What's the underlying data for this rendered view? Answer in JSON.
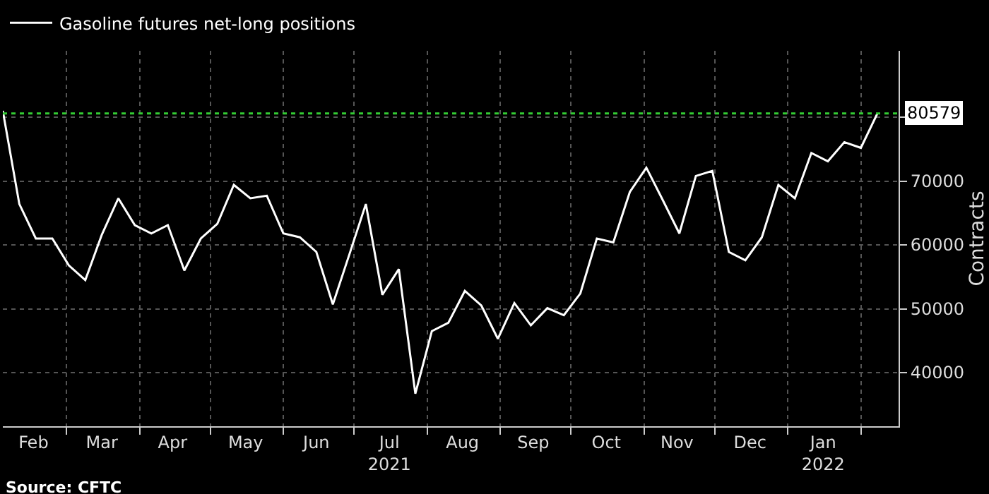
{
  "chart_data": {
    "type": "line",
    "x": [
      "2021-02-02",
      "2021-02-09",
      "2021-02-16",
      "2021-02-23",
      "2021-03-02",
      "2021-03-09",
      "2021-03-16",
      "2021-03-23",
      "2021-03-30",
      "2021-04-06",
      "2021-04-13",
      "2021-04-20",
      "2021-04-27",
      "2021-05-04",
      "2021-05-11",
      "2021-05-18",
      "2021-05-25",
      "2021-06-01",
      "2021-06-08",
      "2021-06-15",
      "2021-06-22",
      "2021-06-29",
      "2021-07-06",
      "2021-07-13",
      "2021-07-20",
      "2021-07-27",
      "2021-08-03",
      "2021-08-10",
      "2021-08-17",
      "2021-08-24",
      "2021-08-31",
      "2021-09-07",
      "2021-09-14",
      "2021-09-21",
      "2021-09-28",
      "2021-10-05",
      "2021-10-12",
      "2021-10-19",
      "2021-10-26",
      "2021-11-02",
      "2021-11-09",
      "2021-11-16",
      "2021-11-23",
      "2021-11-30",
      "2021-12-07",
      "2021-12-14",
      "2021-12-21",
      "2021-12-28",
      "2022-01-04",
      "2022-01-11",
      "2022-01-18",
      "2022-01-25",
      "2022-02-01",
      "2022-02-08"
    ],
    "series": [
      {
        "name": "Gasoline futures net-long positions",
        "color": "#ffffff",
        "values": [
          81000,
          66400,
          61000,
          61000,
          56800,
          54500,
          61600,
          67300,
          63100,
          61800,
          63100,
          56000,
          61000,
          63300,
          69400,
          67300,
          67700,
          61800,
          61200,
          58900,
          50700,
          58500,
          66400,
          52200,
          56200,
          36700,
          46500,
          47800,
          52800,
          50500,
          45300,
          50900,
          47400,
          50100,
          49000,
          52400,
          61000,
          60400,
          68300,
          72100,
          67000,
          61800,
          70800,
          71600,
          58900,
          57600,
          61200,
          69400,
          67300,
          74400,
          73100,
          76100,
          75200,
          80579
        ]
      }
    ],
    "ylabel": "Contracts",
    "ylim": [
      31600,
      90400
    ],
    "yticks": [
      40000,
      50000,
      60000,
      70000,
      {
        "value": 80000,
        "label": null
      }
    ],
    "xlim": [
      "2021-02-02",
      "2022-02-17"
    ],
    "xticks": [
      {
        "value": "2021-02-15",
        "label": "Feb"
      },
      {
        "value": "2021-03-01",
        "label": null
      },
      {
        "value": "2021-03-16",
        "label": "Mar"
      },
      {
        "value": "2021-04-01",
        "label": null
      },
      {
        "value": "2021-04-15",
        "label": "Apr"
      },
      {
        "value": "2021-05-01",
        "label": null
      },
      {
        "value": "2021-05-16",
        "label": "May"
      },
      {
        "value": "2021-06-01",
        "label": null
      },
      {
        "value": "2021-06-15",
        "label": "Jun"
      },
      {
        "value": "2021-07-01",
        "label": null
      },
      {
        "value": "2021-07-16",
        "label": "Jul\n2021"
      },
      {
        "value": "2021-08-01",
        "label": null
      },
      {
        "value": "2021-08-16",
        "label": "Aug"
      },
      {
        "value": "2021-09-01",
        "label": null
      },
      {
        "value": "2021-09-15",
        "label": "Sep"
      },
      {
        "value": "2021-10-01",
        "label": null
      },
      {
        "value": "2021-10-16",
        "label": "Oct"
      },
      {
        "value": "2021-11-01",
        "label": null
      },
      {
        "value": "2021-11-15",
        "label": "Nov"
      },
      {
        "value": "2021-12-01",
        "label": null
      },
      {
        "value": "2021-12-16",
        "label": "Dec"
      },
      {
        "value": "2022-01-01",
        "label": null
      },
      {
        "value": "2022-01-16",
        "label": "Jan\n2022"
      },
      {
        "value": "2022-02-01",
        "label": null
      }
    ],
    "ref_lines": [
      {
        "axis": "y",
        "value": 80579,
        "label": "80579",
        "color": "#33cc33",
        "line_style": "dotted"
      }
    ],
    "annotations": [
      "Source: CFTC"
    ],
    "grid": true,
    "legend": "top left",
    "marker": "none",
    "line_style": "solid"
  }
}
